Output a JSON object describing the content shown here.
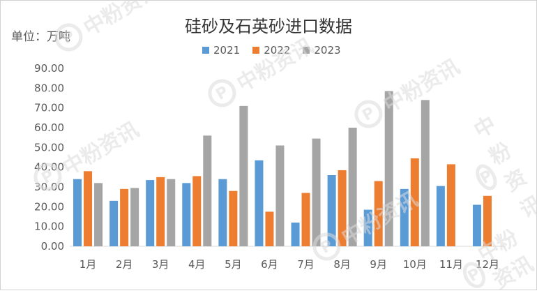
{
  "chart_data": {
    "type": "bar",
    "title": "硅砂及石英砂进口数据",
    "unit_label": "单位：万吨",
    "categories": [
      "1月",
      "2月",
      "3月",
      "4月",
      "5月",
      "6月",
      "7月",
      "8月",
      "9月",
      "10月",
      "11月",
      "12月"
    ],
    "series": [
      {
        "name": "2021",
        "color": "#5B9BD5",
        "values": [
          34.0,
          23.0,
          33.5,
          32.0,
          34.0,
          43.5,
          12.0,
          36.0,
          18.5,
          29.0,
          30.5,
          21.0
        ]
      },
      {
        "name": "2022",
        "color": "#ED7D31",
        "values": [
          38.0,
          29.0,
          35.0,
          35.5,
          28.0,
          17.5,
          27.0,
          38.5,
          33.0,
          44.5,
          41.5,
          25.5
        ]
      },
      {
        "name": "2023",
        "color": "#A5A5A5",
        "values": [
          32.0,
          29.5,
          34.0,
          56.0,
          71.0,
          51.0,
          54.5,
          60.0,
          78.5,
          74.0,
          null,
          null
        ]
      }
    ],
    "y_ticks": [
      "0.00",
      "10.00",
      "20.00",
      "30.00",
      "40.00",
      "50.00",
      "60.00",
      "70.00",
      "80.00",
      "90.00"
    ],
    "ylim": [
      0,
      90
    ],
    "grid": false,
    "legend_position": "top"
  },
  "watermark_text": "中粉资讯"
}
